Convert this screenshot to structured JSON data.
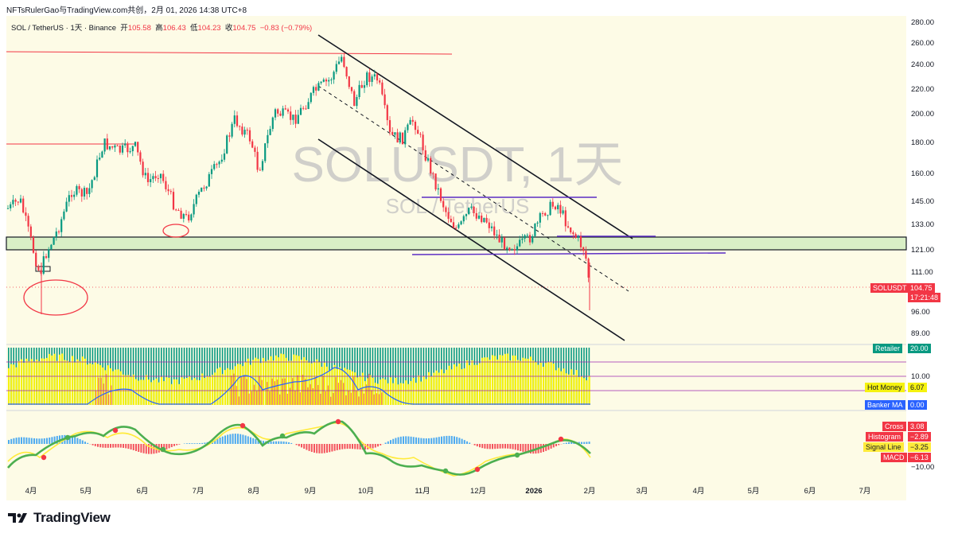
{
  "header": {
    "publisher": "NFTsRulerGao与TradingView.com共创，2月 01, 2026 14:38 UTC+8"
  },
  "legend": {
    "symbol": "SOL / TetherUS · 1天 · Binance",
    "open_label": "开",
    "open": "105.58",
    "high_label": "高",
    "high": "106.43",
    "low_label": "低",
    "low": "104.23",
    "close_label": "收",
    "close": "104.75",
    "change": "−0.83 (−0.79%)"
  },
  "watermark": {
    "title": "SOLUSDT, 1天",
    "subtitle": "SOL / TetherUS"
  },
  "labels": {
    "price_name": "SOLUSDT",
    "price_value": "104.75",
    "countdown": "17:21:48",
    "retailer_name": "Retailer",
    "retailer_value": "20.00",
    "hot_money_name": "Hot Money",
    "hot_money_value": "6.07",
    "banker_name": "Banker MA",
    "banker_value": "0.00",
    "cross_name": "Cross",
    "cross_value": "3.08",
    "histogram_name": "Histogram",
    "histogram_value": "−2.89",
    "signal_name": "Signal Line",
    "signal_value": "−3.25",
    "macd_name": "MACD",
    "macd_value": "−6.13"
  },
  "footer": {
    "brand": "TradingView"
  },
  "colors": {
    "up": "#089981",
    "down": "#f23645",
    "zone": "#d9efc6",
    "retailer": "#089981",
    "hot_money": "#f5f20f",
    "banker": "#2962ff",
    "macd_line_green": "#4caf50",
    "signal_line": "#ffeb3b"
  },
  "chart_data": {
    "type": "candlestick",
    "title": "SOLUSDT, 1天",
    "symbol": "SOL / TetherUS",
    "exchange": "Binance",
    "interval": "1天",
    "last": {
      "open": 105.58,
      "high": 106.43,
      "low": 104.23,
      "close": 104.75,
      "change": -0.83,
      "change_pct": -0.79
    },
    "price_axis_ticks": [
      280,
      260,
      240,
      220,
      200,
      180,
      160,
      145,
      133,
      121,
      111,
      96,
      89
    ],
    "time_axis_ticks": [
      "4月",
      "5月",
      "6月",
      "7月",
      "8月",
      "9月",
      "10月",
      "11月",
      "12月",
      "2026",
      "2月",
      "3月",
      "4月",
      "5月",
      "6月",
      "7月"
    ],
    "series": [
      {
        "name": "SOLUSDT",
        "points": [
          [
            "4月",
            120
          ],
          [
            "4月",
            100
          ],
          [
            "5月",
            135
          ],
          [
            "5月",
            175
          ],
          [
            "6月",
            160
          ],
          [
            "6月",
            145
          ],
          [
            "7月",
            140
          ],
          [
            "7月",
            160
          ],
          [
            "8月",
            190
          ],
          [
            "8月",
            165
          ],
          [
            "9月",
            210
          ],
          [
            "9月",
            245
          ],
          [
            "10月",
            220
          ],
          [
            "10月",
            230
          ],
          [
            "11月",
            190
          ],
          [
            "11月",
            155
          ],
          [
            "12月",
            135
          ],
          [
            "12月",
            125
          ],
          [
            "2026",
            130
          ],
          [
            "2026",
            140
          ],
          [
            "2月",
            115
          ],
          [
            "2月",
            104.75
          ]
        ]
      }
    ],
    "sub_indicators": {
      "retailer_value": 20.0,
      "hot_money_value": 6.07,
      "banker_ma_value": 0.0,
      "indicator_axis_tick": 10.0,
      "macd_value": -6.13,
      "signal_value": -3.25,
      "histogram_value": -2.89,
      "cross_value": 3.08,
      "macd_axis_tick": -10.0
    }
  }
}
